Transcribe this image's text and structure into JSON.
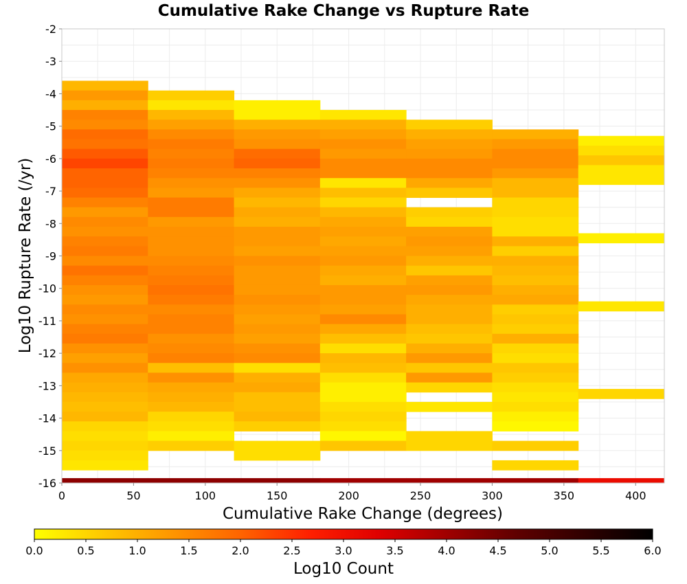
{
  "chart_data": {
    "type": "heatmap",
    "title": "Cumulative Rake Change vs Rupture Rate",
    "xlabel": "Cumulative Rake Change (degrees)",
    "ylabel": "Log10 Rupture Rate (/yr)",
    "colorbar_label": "Log10 Count",
    "xlim": [
      0,
      420
    ],
    "ylim": [
      -16,
      -2
    ],
    "x_ticks": [
      0,
      50,
      100,
      150,
      200,
      250,
      300,
      350,
      400
    ],
    "y_ticks": [
      -2,
      -3,
      -4,
      -5,
      -6,
      -7,
      -8,
      -9,
      -10,
      -11,
      -12,
      -13,
      -14,
      -15,
      -16
    ],
    "colorbar_ticks": [
      "0.0",
      "0.5",
      "1.0",
      "1.5",
      "2.0",
      "2.5",
      "3.0",
      "3.5",
      "4.0",
      "4.5",
      "5.0",
      "5.5",
      "6.0"
    ],
    "colorbar_range": [
      0,
      6
    ],
    "colormap": [
      "#ffff00",
      "#ffc800",
      "#ff9600",
      "#ff6400",
      "#ff2000",
      "#e00000",
      "#a00000",
      "#600000",
      "#300000",
      "#000000"
    ],
    "grid": true,
    "x_bin_width": 60,
    "y_bin_height": 0.3,
    "bottom_row_log10_rate": -16,
    "bottom_row_log10_count": [
      4.2,
      4.2,
      4.2,
      4.0,
      4.0,
      4.0,
      3.1
    ],
    "columns": [
      {
        "x_start": 0,
        "y_top": -3.6,
        "log10_count": [
          0.9,
          1.3,
          1.0,
          1.6,
          1.5,
          1.9,
          1.8,
          2.1,
          2.3,
          2.0,
          2.0,
          1.9,
          1.6,
          1.3,
          1.5,
          1.4,
          1.6,
          1.7,
          1.5,
          1.8,
          1.6,
          1.4,
          1.3,
          1.5,
          1.4,
          1.6,
          1.7,
          1.4,
          1.2,
          1.4,
          1.1,
          1.0,
          0.9,
          0.8,
          0.9,
          0.5,
          0.4,
          0.5,
          0.4,
          0.3
        ]
      },
      {
        "x_start": 60,
        "y_top": -3.9,
        "log10_count": [
          0.6,
          0.3,
          0.9,
          1.2,
          1.5,
          1.7,
          1.6,
          1.7,
          1.6,
          1.4,
          1.3,
          1.7,
          1.7,
          1.3,
          1.4,
          1.4,
          1.4,
          1.5,
          1.6,
          1.7,
          1.8,
          1.7,
          1.5,
          1.6,
          1.6,
          1.4,
          1.5,
          1.6,
          0.8,
          1.4,
          1.1,
          1.0,
          0.9,
          0.5,
          0.4,
          0.2,
          0.6
        ]
      },
      {
        "x_start": 120,
        "y_top": -4.2,
        "log10_count": [
          0.2,
          0.2,
          1.0,
          1.3,
          1.4,
          1.9,
          2.0,
          1.6,
          1.4,
          1.1,
          0.9,
          1.1,
          1.0,
          1.3,
          1.3,
          1.2,
          1.4,
          1.3,
          1.3,
          1.3,
          1.4,
          1.3,
          1.2,
          1.3,
          1.2,
          1.4,
          1.5,
          0.4,
          1.0,
          1.1,
          0.8,
          0.8,
          0.9,
          0.6,
          null,
          0.4,
          0.4
        ]
      },
      {
        "x_start": 180,
        "y_top": -4.5,
        "log10_count": [
          0.3,
          1.0,
          1.2,
          1.4,
          1.3,
          1.5,
          1.5,
          0.3,
          0.8,
          0.5,
          0.9,
          1.1,
          1.2,
          1.1,
          1.2,
          1.3,
          1.1,
          1.0,
          1.3,
          1.3,
          1.2,
          1.5,
          1.1,
          0.8,
          0.4,
          0.9,
          0.8,
          0.4,
          0.2,
          0.2,
          0.4,
          0.5,
          0.4,
          0.1,
          0.7
        ]
      },
      {
        "x_start": 240,
        "y_top": -4.8,
        "log10_count": [
          0.6,
          1.0,
          1.2,
          1.3,
          1.5,
          1.5,
          1.1,
          0.7,
          null,
          0.6,
          0.5,
          1.2,
          1.3,
          1.2,
          1.0,
          0.7,
          1.2,
          1.3,
          1.1,
          1.0,
          1.0,
          0.8,
          0.7,
          1.0,
          1.3,
          0.7,
          1.3,
          0.5,
          null,
          0.3,
          null,
          null,
          0.5,
          0.5
        ]
      },
      {
        "x_start": 300,
        "y_top": -5.1,
        "log10_count": [
          1.0,
          1.3,
          1.5,
          1.5,
          1.3,
          0.9,
          0.9,
          0.5,
          0.5,
          0.4,
          0.4,
          1.0,
          0.6,
          1.0,
          0.9,
          0.8,
          1.0,
          1.1,
          0.6,
          0.7,
          0.6,
          1.0,
          0.5,
          0.4,
          0.7,
          0.6,
          0.4,
          0.3,
          0.4,
          0.2,
          0.1,
          null,
          0.6,
          null,
          0.5
        ]
      },
      {
        "x_start": 360,
        "y_top": -5.3,
        "log10_count": [
          0.2,
          0.4,
          0.7,
          0.3,
          0.3,
          null,
          null,
          null,
          null,
          null,
          0.2,
          null,
          null,
          null,
          null,
          null,
          null,
          0.3,
          null,
          null,
          null,
          null,
          null,
          null,
          null,
          null,
          0.5
        ]
      }
    ]
  }
}
